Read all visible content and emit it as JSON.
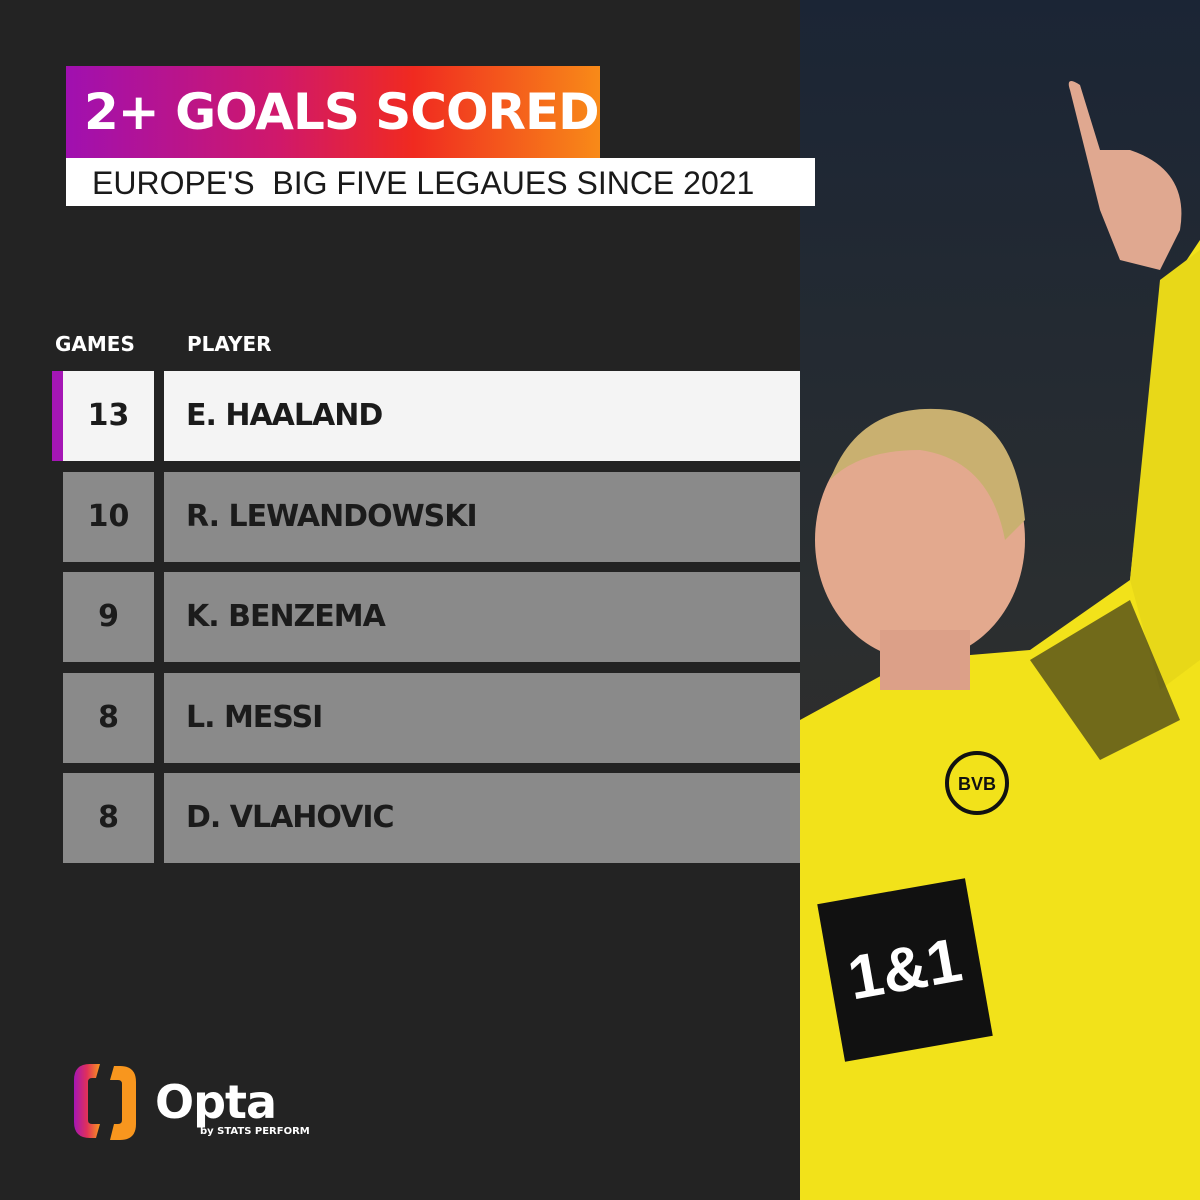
{
  "title": "2+ GOALS SCORED",
  "subtitle": "EUROPE'S  BIG FIVE LEGAUES SINCE 2021",
  "colors": {
    "background": "#232323",
    "highlight_accent": "#a516b5",
    "row_fill": "#8a8a8a",
    "highlight_row": "#f4f4f4"
  },
  "chart_data": {
    "type": "table",
    "columns": [
      "GAMES",
      "PLAYER"
    ],
    "rows": [
      {
        "games": 13,
        "player": "E. HAALAND",
        "highlighted": true
      },
      {
        "games": 10,
        "player": "R. LEWANDOWSKI"
      },
      {
        "games": 9,
        "player": "K. BENZEMA"
      },
      {
        "games": 8,
        "player": "L. MESSI"
      },
      {
        "games": 8,
        "player": "D. VLAHOVIC"
      }
    ]
  },
  "logo": {
    "name": "Opta",
    "tagline": "by STATS PERFORM"
  },
  "photo": {
    "jersey_sponsor": "1&1",
    "crest": "BVB 09"
  }
}
